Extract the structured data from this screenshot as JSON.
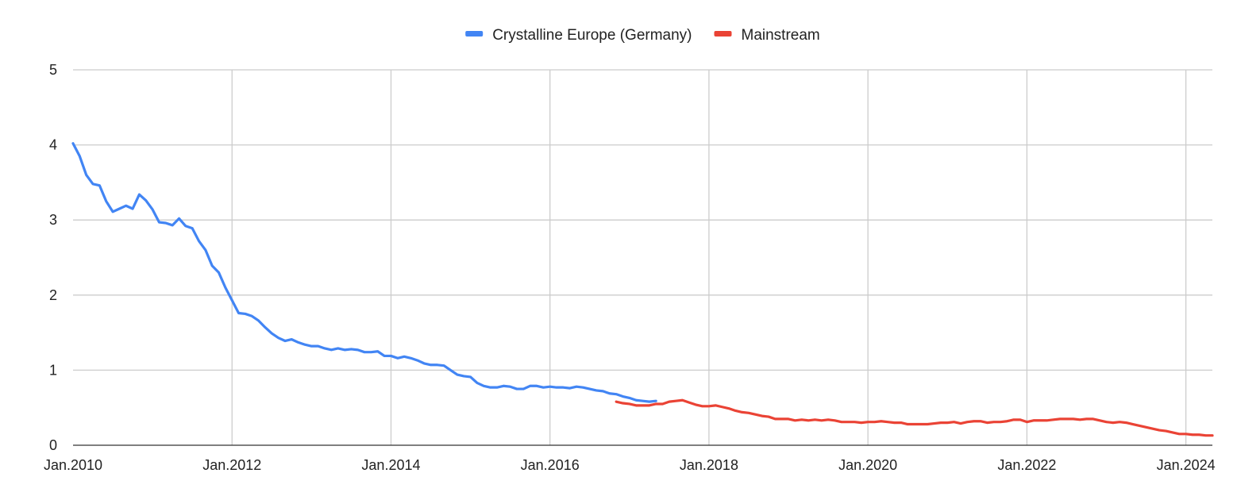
{
  "chart_data": {
    "type": "line",
    "title": "",
    "xlabel": "",
    "ylabel": "",
    "ylim": [
      0,
      5
    ],
    "y_ticks": [
      0,
      1,
      2,
      3,
      4,
      5
    ],
    "x_range": [
      "2010-01",
      "2024-05"
    ],
    "x_tick_labels": [
      {
        "date": "2010-01",
        "label": "Jan.2010"
      },
      {
        "date": "2012-01",
        "label": "Jan.2012"
      },
      {
        "date": "2014-01",
        "label": "Jan.2014"
      },
      {
        "date": "2016-01",
        "label": "Jan.2016"
      },
      {
        "date": "2018-01",
        "label": "Jan.2018"
      },
      {
        "date": "2020-01",
        "label": "Jan.2020"
      },
      {
        "date": "2022-01",
        "label": "Jan.2022"
      },
      {
        "date": "2024-01",
        "label": "Jan.2024"
      }
    ],
    "grid": true,
    "legend_position": "top-center",
    "series": [
      {
        "name": "Crystalline Europe (Germany)",
        "color": "#4285f4",
        "points": [
          [
            "2010-01",
            4.02
          ],
          [
            "2010-02",
            3.85
          ],
          [
            "2010-03",
            3.6
          ],
          [
            "2010-04",
            3.48
          ],
          [
            "2010-05",
            3.46
          ],
          [
            "2010-06",
            3.25
          ],
          [
            "2010-07",
            3.11
          ],
          [
            "2010-08",
            3.15
          ],
          [
            "2010-09",
            3.19
          ],
          [
            "2010-10",
            3.15
          ],
          [
            "2010-11",
            3.34
          ],
          [
            "2010-12",
            3.26
          ],
          [
            "2011-01",
            3.14
          ],
          [
            "2011-02",
            2.97
          ],
          [
            "2011-03",
            2.96
          ],
          [
            "2011-04",
            2.93
          ],
          [
            "2011-05",
            3.02
          ],
          [
            "2011-06",
            2.92
          ],
          [
            "2011-07",
            2.89
          ],
          [
            "2011-08",
            2.72
          ],
          [
            "2011-09",
            2.6
          ],
          [
            "2011-10",
            2.39
          ],
          [
            "2011-11",
            2.3
          ],
          [
            "2011-12",
            2.1
          ],
          [
            "2012-01",
            1.93
          ],
          [
            "2012-02",
            1.76
          ],
          [
            "2012-03",
            1.75
          ],
          [
            "2012-04",
            1.72
          ],
          [
            "2012-05",
            1.66
          ],
          [
            "2012-06",
            1.57
          ],
          [
            "2012-07",
            1.49
          ],
          [
            "2012-08",
            1.43
          ],
          [
            "2012-09",
            1.39
          ],
          [
            "2012-10",
            1.41
          ],
          [
            "2012-11",
            1.37
          ],
          [
            "2012-12",
            1.34
          ],
          [
            "2013-01",
            1.32
          ],
          [
            "2013-02",
            1.32
          ],
          [
            "2013-03",
            1.29
          ],
          [
            "2013-04",
            1.27
          ],
          [
            "2013-05",
            1.29
          ],
          [
            "2013-06",
            1.27
          ],
          [
            "2013-07",
            1.28
          ],
          [
            "2013-08",
            1.27
          ],
          [
            "2013-09",
            1.24
          ],
          [
            "2013-10",
            1.24
          ],
          [
            "2013-11",
            1.25
          ],
          [
            "2013-12",
            1.19
          ],
          [
            "2014-01",
            1.19
          ],
          [
            "2014-02",
            1.16
          ],
          [
            "2014-03",
            1.18
          ],
          [
            "2014-04",
            1.16
          ],
          [
            "2014-05",
            1.13
          ],
          [
            "2014-06",
            1.09
          ],
          [
            "2014-07",
            1.07
          ],
          [
            "2014-08",
            1.07
          ],
          [
            "2014-09",
            1.06
          ],
          [
            "2014-10",
            1.0
          ],
          [
            "2014-11",
            0.94
          ],
          [
            "2014-12",
            0.92
          ],
          [
            "2015-01",
            0.91
          ],
          [
            "2015-02",
            0.83
          ],
          [
            "2015-03",
            0.79
          ],
          [
            "2015-04",
            0.77
          ],
          [
            "2015-05",
            0.77
          ],
          [
            "2015-06",
            0.79
          ],
          [
            "2015-07",
            0.78
          ],
          [
            "2015-08",
            0.75
          ],
          [
            "2015-09",
            0.75
          ],
          [
            "2015-10",
            0.79
          ],
          [
            "2015-11",
            0.79
          ],
          [
            "2015-12",
            0.77
          ],
          [
            "2016-01",
            0.78
          ],
          [
            "2016-02",
            0.77
          ],
          [
            "2016-03",
            0.77
          ],
          [
            "2016-04",
            0.76
          ],
          [
            "2016-05",
            0.78
          ],
          [
            "2016-06",
            0.77
          ],
          [
            "2016-07",
            0.75
          ],
          [
            "2016-08",
            0.73
          ],
          [
            "2016-09",
            0.72
          ],
          [
            "2016-10",
            0.69
          ],
          [
            "2016-11",
            0.68
          ],
          [
            "2016-12",
            0.65
          ],
          [
            "2017-01",
            0.63
          ],
          [
            "2017-02",
            0.6
          ],
          [
            "2017-03",
            0.59
          ],
          [
            "2017-04",
            0.58
          ],
          [
            "2017-05",
            0.59
          ]
        ]
      },
      {
        "name": "Mainstream",
        "color": "#ea4335",
        "points": [
          [
            "2016-11",
            0.58
          ],
          [
            "2016-12",
            0.56
          ],
          [
            "2017-01",
            0.55
          ],
          [
            "2017-02",
            0.53
          ],
          [
            "2017-03",
            0.53
          ],
          [
            "2017-04",
            0.53
          ],
          [
            "2017-05",
            0.55
          ],
          [
            "2017-06",
            0.55
          ],
          [
            "2017-07",
            0.58
          ],
          [
            "2017-08",
            0.59
          ],
          [
            "2017-09",
            0.6
          ],
          [
            "2017-10",
            0.57
          ],
          [
            "2017-11",
            0.54
          ],
          [
            "2017-12",
            0.52
          ],
          [
            "2018-01",
            0.52
          ],
          [
            "2018-02",
            0.53
          ],
          [
            "2018-03",
            0.51
          ],
          [
            "2018-04",
            0.49
          ],
          [
            "2018-05",
            0.46
          ],
          [
            "2018-06",
            0.44
          ],
          [
            "2018-07",
            0.43
          ],
          [
            "2018-08",
            0.41
          ],
          [
            "2018-09",
            0.39
          ],
          [
            "2018-10",
            0.38
          ],
          [
            "2018-11",
            0.35
          ],
          [
            "2018-12",
            0.35
          ],
          [
            "2019-01",
            0.35
          ],
          [
            "2019-02",
            0.33
          ],
          [
            "2019-03",
            0.34
          ],
          [
            "2019-04",
            0.33
          ],
          [
            "2019-05",
            0.34
          ],
          [
            "2019-06",
            0.33
          ],
          [
            "2019-07",
            0.34
          ],
          [
            "2019-08",
            0.33
          ],
          [
            "2019-09",
            0.31
          ],
          [
            "2019-10",
            0.31
          ],
          [
            "2019-11",
            0.31
          ],
          [
            "2019-12",
            0.3
          ],
          [
            "2020-01",
            0.31
          ],
          [
            "2020-02",
            0.31
          ],
          [
            "2020-03",
            0.32
          ],
          [
            "2020-04",
            0.31
          ],
          [
            "2020-05",
            0.3
          ],
          [
            "2020-06",
            0.3
          ],
          [
            "2020-07",
            0.28
          ],
          [
            "2020-08",
            0.28
          ],
          [
            "2020-09",
            0.28
          ],
          [
            "2020-10",
            0.28
          ],
          [
            "2020-11",
            0.29
          ],
          [
            "2020-12",
            0.3
          ],
          [
            "2021-01",
            0.3
          ],
          [
            "2021-02",
            0.31
          ],
          [
            "2021-03",
            0.29
          ],
          [
            "2021-04",
            0.31
          ],
          [
            "2021-05",
            0.32
          ],
          [
            "2021-06",
            0.32
          ],
          [
            "2021-07",
            0.3
          ],
          [
            "2021-08",
            0.31
          ],
          [
            "2021-09",
            0.31
          ],
          [
            "2021-10",
            0.32
          ],
          [
            "2021-11",
            0.34
          ],
          [
            "2021-12",
            0.34
          ],
          [
            "2022-01",
            0.31
          ],
          [
            "2022-02",
            0.33
          ],
          [
            "2022-03",
            0.33
          ],
          [
            "2022-04",
            0.33
          ],
          [
            "2022-05",
            0.34
          ],
          [
            "2022-06",
            0.35
          ],
          [
            "2022-07",
            0.35
          ],
          [
            "2022-08",
            0.35
          ],
          [
            "2022-09",
            0.34
          ],
          [
            "2022-10",
            0.35
          ],
          [
            "2022-11",
            0.35
          ],
          [
            "2022-12",
            0.33
          ],
          [
            "2023-01",
            0.31
          ],
          [
            "2023-02",
            0.3
          ],
          [
            "2023-03",
            0.31
          ],
          [
            "2023-04",
            0.3
          ],
          [
            "2023-05",
            0.28
          ],
          [
            "2023-06",
            0.26
          ],
          [
            "2023-07",
            0.24
          ],
          [
            "2023-08",
            0.22
          ],
          [
            "2023-09",
            0.2
          ],
          [
            "2023-10",
            0.19
          ],
          [
            "2023-11",
            0.17
          ],
          [
            "2023-12",
            0.15
          ],
          [
            "2024-01",
            0.15
          ],
          [
            "2024-02",
            0.14
          ],
          [
            "2024-03",
            0.14
          ],
          [
            "2024-04",
            0.13
          ],
          [
            "2024-05",
            0.13
          ]
        ]
      }
    ]
  }
}
